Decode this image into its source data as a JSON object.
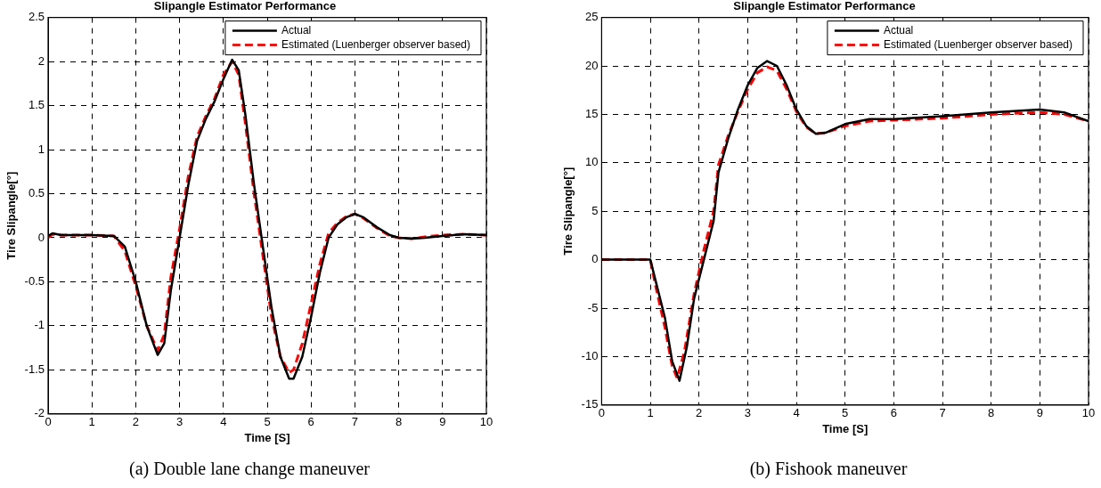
{
  "chart_data": [
    {
      "type": "line",
      "title": "Slipangle Estimator Performance",
      "xlabel": "Time [S]",
      "ylabel": "Tire Slipangle[°]",
      "annotations": [
        "(a) Double lane change maneuver"
      ],
      "xlim": [
        0,
        10
      ],
      "xticks": [
        0,
        1,
        2,
        3,
        4,
        5,
        6,
        7,
        8,
        9,
        10
      ],
      "ylim": [
        -2,
        2.5
      ],
      "yticks": [
        -2,
        -1.5,
        -1,
        -0.5,
        0,
        0.5,
        1,
        1.5,
        2,
        2.5
      ],
      "grid": true,
      "legend": "top right",
      "series": [
        {
          "name": "Actual",
          "color": "#000000",
          "line_style": "solid",
          "x": [
            0,
            0.1,
            0.3,
            1,
            1.5,
            1.75,
            2,
            2.25,
            2.5,
            2.65,
            2.8,
            3,
            3.2,
            3.4,
            3.6,
            3.8,
            4,
            4.2,
            4.35,
            4.5,
            4.7,
            4.9,
            5.1,
            5.3,
            5.5,
            5.6,
            5.8,
            6,
            6.2,
            6.4,
            6.6,
            6.8,
            7,
            7.2,
            7.5,
            7.8,
            8,
            8.3,
            8.6,
            9,
            9.5,
            10
          ],
          "values": [
            0.02,
            0.05,
            0.03,
            0.03,
            0.02,
            -0.1,
            -0.5,
            -1.0,
            -1.33,
            -1.2,
            -0.6,
            0.0,
            0.6,
            1.1,
            1.35,
            1.55,
            1.8,
            2.02,
            1.9,
            1.4,
            0.6,
            -0.1,
            -0.8,
            -1.35,
            -1.6,
            -1.6,
            -1.35,
            -0.9,
            -0.4,
            0.0,
            0.15,
            0.23,
            0.27,
            0.23,
            0.12,
            0.03,
            0.0,
            -0.01,
            0.0,
            0.02,
            0.04,
            0.03
          ]
        },
        {
          "name": "Estimated (Luenberger observer based)",
          "color": "#ff0000",
          "line_style": "dashed",
          "x": [
            0,
            0.1,
            0.3,
            1,
            1.5,
            1.75,
            2,
            2.25,
            2.5,
            2.65,
            2.8,
            3,
            3.2,
            3.4,
            3.6,
            3.8,
            4,
            4.2,
            4.35,
            4.5,
            4.7,
            4.9,
            5.1,
            5.3,
            5.5,
            5.6,
            5.8,
            6,
            6.2,
            6.4,
            6.6,
            6.8,
            7,
            7.2,
            7.5,
            7.8,
            8,
            8.3,
            8.6,
            9,
            9.5,
            10
          ],
          "values": [
            0.0,
            0.04,
            0.03,
            0.03,
            0.02,
            -0.15,
            -0.55,
            -1.0,
            -1.28,
            -1.1,
            -0.45,
            0.1,
            0.7,
            1.15,
            1.38,
            1.58,
            1.85,
            2.0,
            1.85,
            1.3,
            0.5,
            -0.2,
            -0.9,
            -1.35,
            -1.53,
            -1.5,
            -1.2,
            -0.75,
            -0.3,
            0.05,
            0.17,
            0.24,
            0.27,
            0.22,
            0.11,
            0.02,
            0.0,
            -0.01,
            0.01,
            0.03,
            0.04,
            0.03
          ]
        }
      ]
    },
    {
      "type": "line",
      "title": "Slipangle Estimator Performance",
      "xlabel": "Time [S]",
      "ylabel": "Tire Slipangle[°]",
      "annotations": [
        "(b) Fishook maneuver"
      ],
      "xlim": [
        0,
        10
      ],
      "xticks": [
        0,
        1,
        2,
        3,
        4,
        5,
        6,
        7,
        8,
        9,
        10
      ],
      "ylim": [
        -15,
        25
      ],
      "yticks": [
        -15,
        -10,
        -5,
        0,
        5,
        10,
        15,
        20,
        25
      ],
      "grid": true,
      "legend": "top right",
      "series": [
        {
          "name": "Actual",
          "color": "#000000",
          "line_style": "solid",
          "x": [
            0,
            1,
            1.1,
            1.3,
            1.45,
            1.6,
            1.75,
            1.9,
            2.1,
            2.3,
            2.4,
            2.6,
            2.8,
            3,
            3.2,
            3.4,
            3.6,
            3.8,
            4,
            4.2,
            4.4,
            4.6,
            5,
            5.5,
            6,
            7,
            8,
            9,
            9.5,
            10
          ],
          "values": [
            0,
            0,
            -2,
            -6,
            -10.5,
            -12.5,
            -9,
            -4,
            0,
            4,
            9,
            12.5,
            15.5,
            18,
            19.8,
            20.5,
            20,
            18,
            15.5,
            13.8,
            13,
            13.1,
            14,
            14.5,
            14.5,
            14.8,
            15.2,
            15.5,
            15.2,
            14.3
          ]
        },
        {
          "name": "Estimated (Luenberger observer based)",
          "color": "#ff0000",
          "line_style": "dashed",
          "x": [
            0,
            1,
            1.1,
            1.3,
            1.45,
            1.55,
            1.7,
            1.9,
            2.1,
            2.3,
            2.4,
            2.6,
            2.8,
            3,
            3.2,
            3.4,
            3.6,
            3.8,
            4,
            4.2,
            4.4,
            4.6,
            5,
            5.5,
            6,
            7,
            8,
            9,
            9.5,
            10
          ],
          "values": [
            0,
            0,
            -2.5,
            -7,
            -11,
            -12.2,
            -9.5,
            -3.5,
            1,
            5,
            9.8,
            12.8,
            15.3,
            17.6,
            19.3,
            19.9,
            19.5,
            17.6,
            15.3,
            13.7,
            13,
            13.1,
            13.8,
            14.3,
            14.4,
            14.6,
            15,
            15.2,
            15,
            14.3
          ]
        }
      ]
    }
  ]
}
